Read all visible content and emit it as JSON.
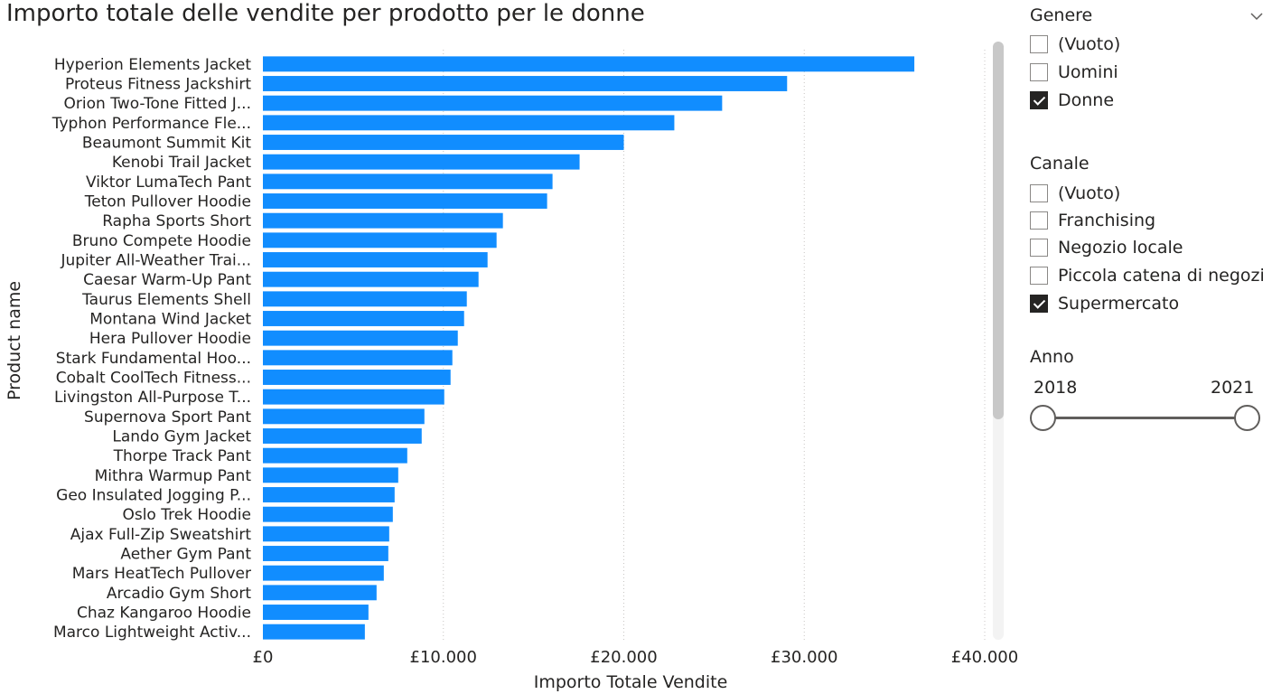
{
  "chart_data": {
    "type": "bar",
    "orientation": "horizontal",
    "title": "Importo totale delle vendite per prodotto per le donne",
    "xlabel": "Importo Totale Vendite",
    "ylabel": "Product name",
    "xlim": [
      0,
      40000
    ],
    "x_ticks": [
      0,
      10000,
      20000,
      30000,
      40000
    ],
    "x_tick_labels": [
      "£0",
      "£10.000",
      "£20.000",
      "£30.000",
      "£40.000"
    ],
    "grid": true,
    "bar_color": "#118dff",
    "categories": [
      "Hyperion Elements Jacket",
      "Proteus Fitness Jackshirt",
      "Orion Two-Tone Fitted J...",
      "Typhon Performance Fle...",
      "Beaumont Summit Kit",
      "Kenobi Trail Jacket",
      "Viktor LumaTech Pant",
      "Teton Pullover Hoodie",
      "Rapha Sports Short",
      "Bruno Compete Hoodie",
      "Jupiter All-Weather Trai...",
      "Caesar Warm-Up Pant",
      "Taurus Elements Shell",
      "Montana Wind Jacket",
      "Hera Pullover Hoodie",
      "Stark Fundamental Hoo...",
      "Cobalt CoolTech Fitness...",
      "Livingston All-Purpose T...",
      "Supernova Sport Pant",
      "Lando Gym Jacket",
      "Thorpe Track Pant",
      "Mithra Warmup Pant",
      "Geo Insulated Jogging P...",
      "Oslo Trek Hoodie",
      "Ajax Full-Zip Sweatshirt",
      "Aether Gym Pant",
      "Mars HeatTech Pullover",
      "Arcadio Gym Short",
      "Chaz Kangaroo Hoodie",
      "Marco Lightweight Activ..."
    ],
    "values": [
      36100,
      29050,
      25450,
      22800,
      20000,
      17550,
      16050,
      15750,
      13300,
      12950,
      12450,
      11950,
      11300,
      11150,
      10800,
      10500,
      10400,
      10050,
      8950,
      8800,
      8000,
      7500,
      7300,
      7200,
      7000,
      6950,
      6700,
      6300,
      5850,
      5650
    ]
  },
  "slicers": {
    "genere": {
      "title": "Genere",
      "expand_icon": "chevron-down-icon",
      "options": [
        {
          "label": "(Vuoto)",
          "checked": false
        },
        {
          "label": "Uomini",
          "checked": false
        },
        {
          "label": "Donne",
          "checked": true
        }
      ]
    },
    "canale": {
      "title": "Canale",
      "options": [
        {
          "label": "(Vuoto)",
          "checked": false
        },
        {
          "label": "Franchising",
          "checked": false
        },
        {
          "label": "Negozio locale",
          "checked": false
        },
        {
          "label": "Piccola catena di negozi",
          "checked": false
        },
        {
          "label": "Supermercato",
          "checked": true
        }
      ]
    },
    "anno": {
      "title": "Anno",
      "min_label": "2018",
      "max_label": "2021"
    }
  }
}
